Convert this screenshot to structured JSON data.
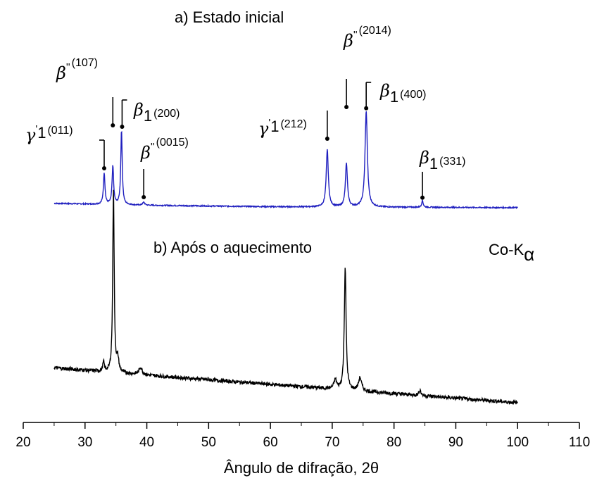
{
  "chart_data": {
    "type": "line",
    "title": "",
    "xlabel": "Ângulo de difração, 2θ",
    "ylabel": "",
    "xlim": [
      20,
      110
    ],
    "xticks": [
      20,
      30,
      40,
      50,
      60,
      70,
      80,
      90,
      100,
      110
    ],
    "grid": false,
    "radiation_label": "Co-Kα",
    "series": [
      {
        "name": "a) Estado inicial",
        "color": "#1f1fbf",
        "x_range": [
          25,
          100
        ],
        "baseline": [
          [
            25,
            0.06
          ],
          [
            40,
            0.04
          ],
          [
            60,
            0.025
          ],
          [
            80,
            0.02
          ],
          [
            100,
            0.015
          ]
        ],
        "peaks": [
          {
            "x": 33.1,
            "height": 0.33,
            "width": 0.3
          },
          {
            "x": 34.5,
            "height": 0.4,
            "width": 0.3
          },
          {
            "x": 35.9,
            "height": 0.78,
            "width": 0.28
          },
          {
            "x": 39.5,
            "height": 0.03,
            "width": 0.4
          },
          {
            "x": 69.2,
            "height": 0.6,
            "width": 0.4
          },
          {
            "x": 72.3,
            "height": 0.45,
            "width": 0.4
          },
          {
            "x": 75.5,
            "height": 1.0,
            "width": 0.45
          },
          {
            "x": 84.6,
            "height": 0.07,
            "width": 0.3
          }
        ],
        "annotations": [
          {
            "symbol": "γ",
            "sup": "'",
            "sub": "1",
            "text": "(011)",
            "x": 33.1
          },
          {
            "symbol": "β",
            "sup": "''",
            "sub": "",
            "text": "(107)",
            "x": 34.5
          },
          {
            "symbol": "β",
            "sup": "",
            "sub": "1",
            "text": "(200)",
            "x": 36.0
          },
          {
            "symbol": "β",
            "sup": "''",
            "sub": "",
            "text": "(0015)",
            "x": 39.5
          },
          {
            "symbol": "γ",
            "sup": "'",
            "sub": "1",
            "text": "(212)",
            "x": 69.2
          },
          {
            "symbol": "β",
            "sup": "''",
            "sub": "",
            "text": "(2014)",
            "x": 72.3
          },
          {
            "symbol": "β",
            "sup": "",
            "sub": "1",
            "text": "(400)",
            "x": 75.5
          },
          {
            "symbol": "β",
            "sup": "",
            "sub": "1",
            "text": "(331)",
            "x": 84.6
          }
        ]
      },
      {
        "name": "b) Após o aquecimento",
        "color": "#000000",
        "x_range": [
          25,
          100
        ],
        "baseline": [
          [
            25,
            0.19
          ],
          [
            40,
            0.15
          ],
          [
            60,
            0.1
          ],
          [
            80,
            0.05
          ],
          [
            100,
            0.0
          ]
        ],
        "peaks": [
          {
            "x": 33.0,
            "height": 0.05,
            "width": 0.3
          },
          {
            "x": 34.6,
            "height": 1.0,
            "width": 0.28
          },
          {
            "x": 35.3,
            "height": 0.07,
            "width": 0.4
          },
          {
            "x": 39.0,
            "height": 0.04,
            "width": 0.6
          },
          {
            "x": 72.1,
            "height": 0.67,
            "width": 0.35
          },
          {
            "x": 70.5,
            "height": 0.05,
            "width": 0.5
          },
          {
            "x": 74.5,
            "height": 0.07,
            "width": 0.6
          },
          {
            "x": 84.2,
            "height": 0.03,
            "width": 0.4
          }
        ]
      }
    ]
  }
}
